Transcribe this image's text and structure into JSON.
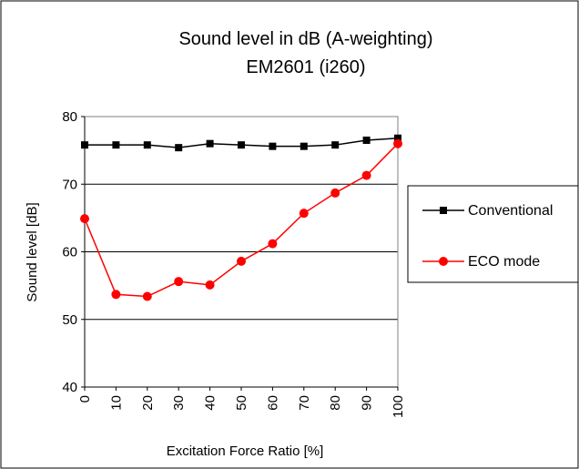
{
  "chart_data": {
    "type": "line",
    "title": "Sound level in dB (A-weighting)",
    "subtitle": "EM2601 (i260)",
    "xlabel": "Excitation Force Ratio [%]",
    "ylabel": "Sound level [dB]",
    "x": [
      0,
      10,
      20,
      30,
      40,
      50,
      60,
      70,
      80,
      90,
      100
    ],
    "ylim": [
      40,
      80
    ],
    "yticks": [
      40,
      50,
      60,
      70,
      80
    ],
    "grid": "horizontal",
    "legend_position": "right",
    "series": [
      {
        "name": "Conventional",
        "color": "#000000",
        "marker": "square",
        "values": [
          75.8,
          75.8,
          75.8,
          75.4,
          76.0,
          75.8,
          75.6,
          75.6,
          75.8,
          76.5,
          76.8
        ]
      },
      {
        "name": "ECO mode",
        "color": "#ff0000",
        "marker": "circle",
        "values": [
          64.9,
          53.7,
          53.4,
          55.6,
          55.1,
          58.6,
          61.2,
          65.7,
          68.7,
          71.3,
          76.0
        ]
      }
    ]
  }
}
